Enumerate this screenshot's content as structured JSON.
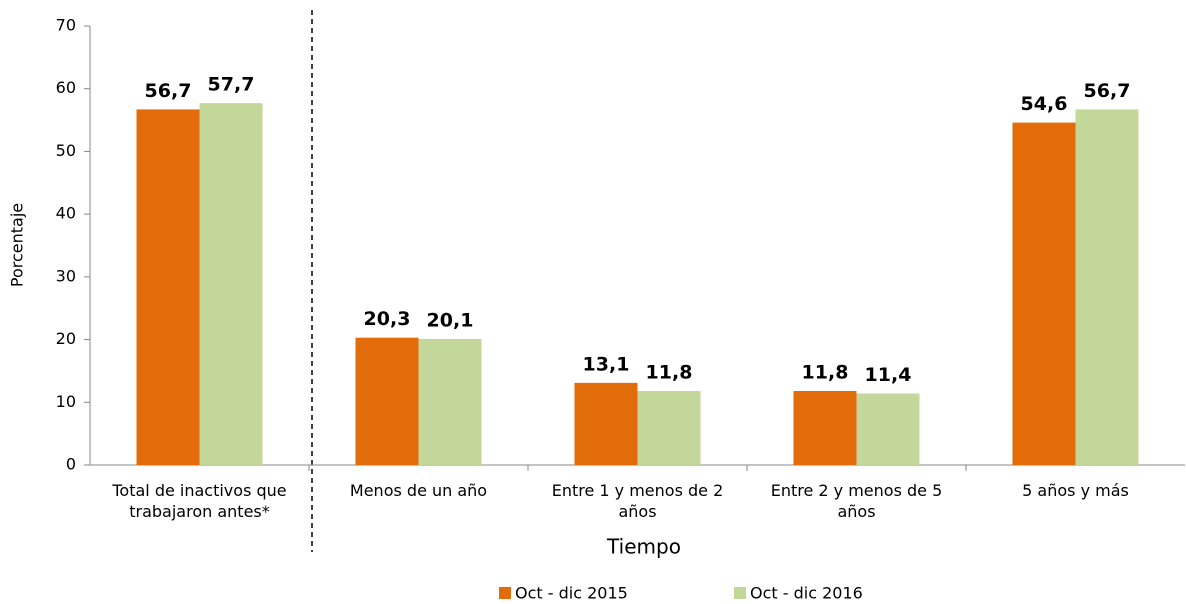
{
  "chart_data": {
    "type": "bar",
    "categories": [
      "Total de inactivos que trabajaron antes*",
      "Menos de un año",
      "Entre 1 y menos de 2 años",
      "Entre 2 y menos de 5 años",
      "5 años y más"
    ],
    "series": [
      {
        "name": "Oct - dic 2015",
        "color": "#e36c0a",
        "values": [
          56.7,
          20.3,
          13.1,
          11.8,
          54.6
        ],
        "value_labels": [
          "56,7",
          "20,3",
          "13,1",
          "11,8",
          "54,6"
        ]
      },
      {
        "name": "Oct - dic 2016",
        "color": "#c4d79b",
        "values": [
          57.7,
          20.1,
          11.8,
          11.4,
          56.7
        ],
        "value_labels": [
          "57,7",
          "20,1",
          "11,8",
          "11,4",
          "56,7"
        ]
      }
    ],
    "xlabel": "Tiempo",
    "ylabel": "Porcentaje",
    "ylim": [
      0,
      70
    ],
    "yticks": [
      0,
      10,
      20,
      30,
      40,
      50,
      60,
      70
    ],
    "grid": false,
    "legend": "bottom"
  }
}
